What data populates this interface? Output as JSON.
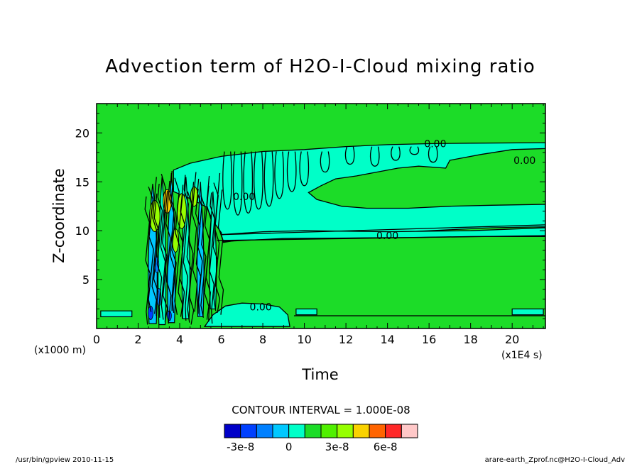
{
  "chart_data": {
    "type": "heatmap",
    "subtype": "filled-contour",
    "title": "Advection term of H2O-I-Cloud mixing ratio",
    "xlabel": "Time",
    "ylabel": "Z-coordinate",
    "x_unit": "(x1E4 s)",
    "y_unit": "(x1000 m)",
    "xlim": [
      0,
      21.6
    ],
    "ylim": [
      0,
      23
    ],
    "x_ticks": [
      0,
      2,
      4,
      6,
      8,
      10,
      12,
      14,
      16,
      18,
      20
    ],
    "y_ticks": [
      5,
      10,
      15,
      20
    ],
    "grid": false,
    "contour_interval_text": "CONTOUR INTERVAL = 1.000E-08",
    "contour_labels": [
      {
        "text": "0.00",
        "x": 16.3,
        "y": 18.9
      },
      {
        "text": "0.00",
        "x": 20.6,
        "y": 17.2
      },
      {
        "text": "0.00",
        "x": 14.0,
        "y": 9.5
      },
      {
        "text": "0.00",
        "x": 7.9,
        "y": 2.2
      },
      {
        "text": "0.00",
        "x": 7.1,
        "y": 13.5
      }
    ],
    "regions": {
      "background_color": "#1cdc28",
      "band_color": "#00ffc8",
      "anvil_upper": [
        [
          3.7,
          16.2
        ],
        [
          4.5,
          16.9
        ],
        [
          6.0,
          17.6
        ],
        [
          8.0,
          18.1
        ],
        [
          10.0,
          18.3
        ],
        [
          12.0,
          18.6
        ],
        [
          14.0,
          18.8
        ],
        [
          16.0,
          18.9
        ],
        [
          18.0,
          18.95
        ],
        [
          21.6,
          19.0
        ],
        [
          21.6,
          18.4
        ],
        [
          20.0,
          18.3
        ],
        [
          18.5,
          17.8
        ],
        [
          17.0,
          17.2
        ],
        [
          16.8,
          16.4
        ],
        [
          15.5,
          16.6
        ],
        [
          14.5,
          16.4
        ],
        [
          13.5,
          16.0
        ],
        [
          12.5,
          15.6
        ],
        [
          11.5,
          15.3
        ],
        [
          10.8,
          14.6
        ],
        [
          10.2,
          13.9
        ],
        [
          10.6,
          13.2
        ],
        [
          11.8,
          12.5
        ],
        [
          13.0,
          12.3
        ],
        [
          15.0,
          12.3
        ],
        [
          17.0,
          12.5
        ],
        [
          19.0,
          12.6
        ],
        [
          21.6,
          12.7
        ],
        [
          21.6,
          10.4
        ],
        [
          19.0,
          10.3
        ],
        [
          17.0,
          10.1
        ],
        [
          15.0,
          9.9
        ],
        [
          13.0,
          9.7
        ],
        [
          11.0,
          9.5
        ],
        [
          9.0,
          9.3
        ],
        [
          7.0,
          9.1
        ],
        [
          6.1,
          8.8
        ],
        [
          6.0,
          9.8
        ],
        [
          5.6,
          11.0
        ],
        [
          5.3,
          12.4
        ],
        [
          4.6,
          13.2
        ],
        [
          3.7,
          14.0
        ]
      ],
      "anvil_lower_strip": [
        [
          6.0,
          9.6
        ],
        [
          8.0,
          9.9
        ],
        [
          10.0,
          10.0
        ],
        [
          12.0,
          9.95
        ],
        [
          14.0,
          9.9
        ],
        [
          16.0,
          9.95
        ],
        [
          18.0,
          10.0
        ],
        [
          21.6,
          10.3
        ],
        [
          21.6,
          9.4
        ],
        [
          18.0,
          9.4
        ],
        [
          15.0,
          9.3
        ],
        [
          12.0,
          9.25
        ],
        [
          9.0,
          9.2
        ],
        [
          6.1,
          8.9
        ]
      ],
      "lower_band": [
        [
          5.6,
          1.4
        ],
        [
          6.2,
          2.3
        ],
        [
          7.0,
          2.6
        ],
        [
          8.0,
          2.5
        ],
        [
          8.8,
          2.2
        ],
        [
          9.2,
          1.4
        ],
        [
          9.3,
          0.2
        ],
        [
          5.2,
          0.2
        ]
      ],
      "core_columns": [
        {
          "x": 2.7,
          "y0": 0.5,
          "y1": 14.8,
          "w": 0.35,
          "color": "#00c8ff"
        },
        {
          "x": 3.15,
          "y0": 0.4,
          "y1": 15.5,
          "w": 0.3,
          "color": "#00ffc8"
        },
        {
          "x": 3.6,
          "y0": 0.6,
          "y1": 15.9,
          "w": 0.3,
          "color": "#00c8ff"
        },
        {
          "x": 4.3,
          "y0": 1.0,
          "y1": 15.5,
          "w": 0.3,
          "color": "#00ffc8"
        },
        {
          "x": 5.0,
          "y0": 1.2,
          "y1": 15.0,
          "w": 0.25,
          "color": "#00c8ff"
        },
        {
          "x": 5.6,
          "y0": 2.0,
          "y1": 14.0,
          "w": 0.25,
          "color": "#00ffc8"
        }
      ],
      "positive_patches": [
        {
          "x": 2.8,
          "y": 11.5,
          "rx": 0.25,
          "ry": 1.6,
          "color": "#96ff00"
        },
        {
          "x": 3.4,
          "y": 13.0,
          "rx": 0.2,
          "ry": 1.2,
          "color": "#fad200"
        },
        {
          "x": 4.1,
          "y": 12.0,
          "rx": 0.22,
          "ry": 1.8,
          "color": "#96ff00"
        },
        {
          "x": 4.7,
          "y": 13.5,
          "rx": 0.18,
          "ry": 1.0,
          "color": "#96ff00"
        },
        {
          "x": 3.8,
          "y": 9.0,
          "rx": 0.15,
          "ry": 1.2,
          "color": "#96ff00"
        }
      ],
      "negative_patches": [
        {
          "x": 2.6,
          "y": 1.6,
          "rx": 0.12,
          "ry": 0.7,
          "color": "#0040ff"
        },
        {
          "x": 3.0,
          "y": 3.2,
          "rx": 0.1,
          "ry": 0.9,
          "color": "#0080ff"
        },
        {
          "x": 3.5,
          "y": 1.3,
          "rx": 0.1,
          "ry": 0.5,
          "color": "#0040ff"
        },
        {
          "x": 2.9,
          "y": 6.5,
          "rx": 0.1,
          "ry": 0.8,
          "color": "#0080ff"
        }
      ]
    },
    "colorbar": {
      "colors": [
        "#0000c8",
        "#0040ff",
        "#0080ff",
        "#00c8ff",
        "#00ffc8",
        "#1cdc28",
        "#50f000",
        "#96ff00",
        "#fad200",
        "#ff6400",
        "#ff2828",
        "#ffc8c8"
      ],
      "labels": [
        "-3e-8",
        "0",
        "3e-8",
        "6e-8"
      ],
      "label_positions": [
        1,
        4,
        7,
        10
      ]
    }
  },
  "footer": {
    "left": "/usr/bin/gpview  2010-11-15",
    "right": "arare-earth_Zprof.nc@H2O-I-Cloud_Adv"
  }
}
